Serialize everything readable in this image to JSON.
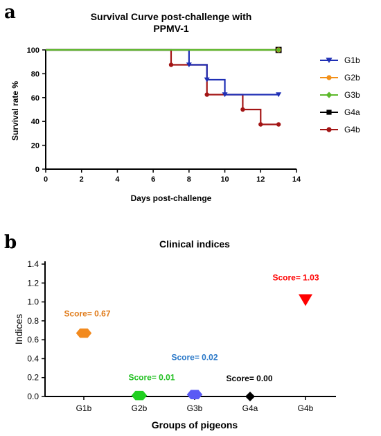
{
  "panel_a_label": "a",
  "panel_b_label": "b",
  "chart_data": [
    {
      "type": "line",
      "title": "Survival Curve post-challenge with PPMV-1",
      "title_lines": [
        "Survival Curve post-challenge with",
        "PPMV-1"
      ],
      "xlabel": "Days post-challenge",
      "ylabel": "Survival rate %",
      "xlim": [
        0,
        14
      ],
      "ylim": [
        0,
        100
      ],
      "xticks": [
        "0",
        "2",
        "4",
        "6",
        "8",
        "10",
        "12",
        "14"
      ],
      "yticks": [
        "0",
        "20",
        "40",
        "60",
        "80",
        "100"
      ],
      "legend_position": "right",
      "series": [
        {
          "name": "G1b",
          "color": "#1f2fb5",
          "marker": "triangle-down",
          "step": [
            [
              0,
              100
            ],
            [
              8,
              100
            ],
            [
              8,
              87.5
            ],
            [
              9,
              87.5
            ],
            [
              9,
              75
            ],
            [
              10,
              75
            ],
            [
              10,
              62.5
            ],
            [
              13,
              62.5
            ]
          ],
          "points": [
            [
              8,
              87.5
            ],
            [
              9,
              75
            ],
            [
              10,
              62.5
            ],
            [
              13,
              62.5
            ]
          ]
        },
        {
          "name": "G2b",
          "color": "#f39019",
          "marker": "circle",
          "step": [
            [
              0,
              100
            ],
            [
              13,
              100
            ]
          ],
          "points": [
            [
              13,
              100
            ]
          ]
        },
        {
          "name": "G3b",
          "color": "#5cb82a",
          "marker": "diamond",
          "step": [
            [
              0,
              100
            ],
            [
              13,
              100
            ]
          ],
          "points": [
            [
              13,
              100
            ]
          ]
        },
        {
          "name": "G4a",
          "color": "#000000",
          "marker": "square",
          "step": [
            [
              0,
              100
            ],
            [
              13,
              100
            ]
          ],
          "points": [
            [
              13,
              100
            ]
          ]
        },
        {
          "name": "G4b",
          "color": "#a31515",
          "marker": "circle",
          "step": [
            [
              0,
              100
            ],
            [
              7,
              100
            ],
            [
              7,
              87.5
            ],
            [
              9,
              87.5
            ],
            [
              9,
              62.5
            ],
            [
              11,
              62.5
            ],
            [
              11,
              50
            ],
            [
              12,
              50
            ],
            [
              12,
              37.5
            ],
            [
              13,
              37.5
            ]
          ],
          "points": [
            [
              7,
              87.5
            ],
            [
              9,
              62.5
            ],
            [
              11,
              50
            ],
            [
              12,
              37.5
            ],
            [
              13,
              37.5
            ]
          ]
        }
      ]
    },
    {
      "type": "scatter",
      "title": "Clinical indices",
      "xlabel": "Groups of pigeons",
      "ylabel": "Indices",
      "ylim": [
        0,
        1.4
      ],
      "yticks": [
        "0.0",
        "0.2",
        "0.4",
        "0.6",
        "0.8",
        "1.0",
        "1.2",
        "1.4"
      ],
      "categories": [
        "G1b",
        "G2b",
        "G3b",
        "G4a",
        "G4b"
      ],
      "points": [
        {
          "category": "G1b",
          "value": 0.67,
          "label": "Score= 0.67",
          "color": "#f28a1e",
          "label_color": "#e07b1a",
          "marker": "hexagon"
        },
        {
          "category": "G2b",
          "value": 0.01,
          "label": "Score= 0.01",
          "color": "#1fd01f",
          "label_color": "#22c022",
          "marker": "hexagon"
        },
        {
          "category": "G3b",
          "value": 0.02,
          "label": "Score= 0.02",
          "color": "#5a5af5",
          "label_color": "#2a78c8",
          "marker": "hexagon"
        },
        {
          "category": "G4a",
          "value": 0.0,
          "label": "Score= 0.00",
          "color": "#000000",
          "label_color": "#000000",
          "marker": "diamond"
        },
        {
          "category": "G4b",
          "value": 1.03,
          "label": "Score= 1.03",
          "color": "#ff0000",
          "label_color": "#ff0000",
          "marker": "triangle-down"
        }
      ]
    }
  ]
}
